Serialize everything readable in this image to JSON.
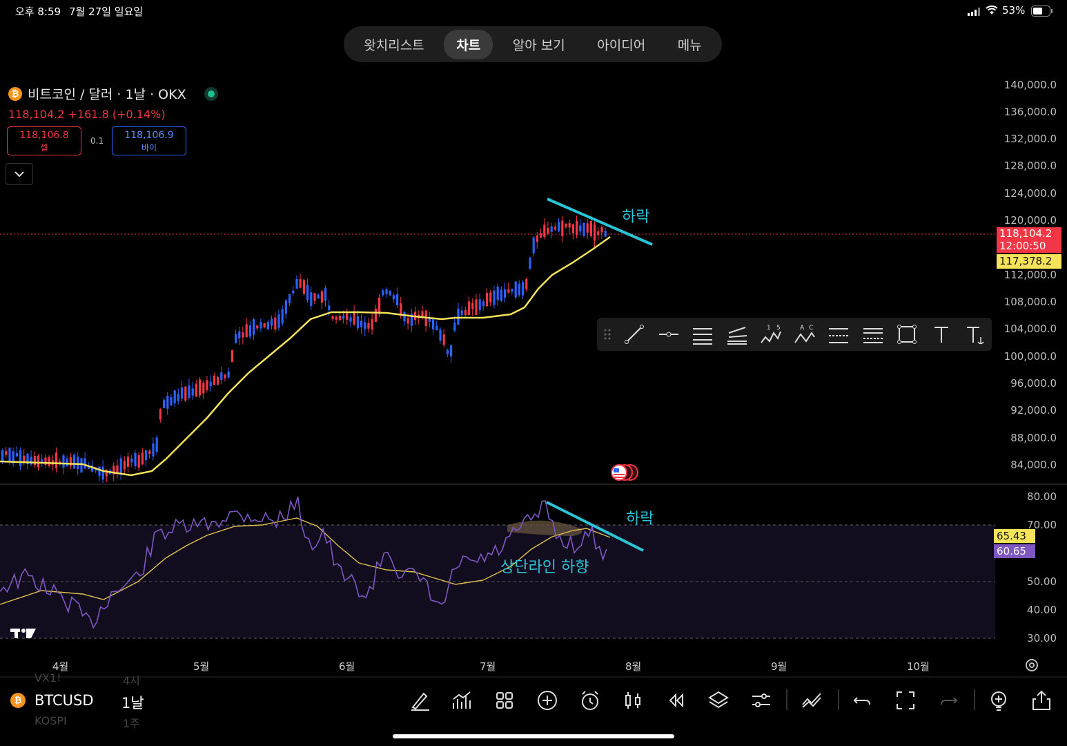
{
  "status_bar": {
    "time": "오후 8:59",
    "date": "7월 27일 일요일",
    "battery": "53%"
  },
  "tabs": [
    {
      "label": "왓치리스트",
      "active": false
    },
    {
      "label": "차트",
      "active": true
    },
    {
      "label": "알아 보기",
      "active": false
    },
    {
      "label": "아이디어",
      "active": false
    },
    {
      "label": "메뉴",
      "active": false
    }
  ],
  "symbol": {
    "logo": "₿",
    "title": "비트코인 / 달러 · 1날 · OKX",
    "last_price": "118,104.2",
    "change": "+161.8",
    "change_pct": "(+0.14%)",
    "sell_price": "118,106.8",
    "sell_label": "셀",
    "spread": "0.1",
    "buy_price": "118,106.9",
    "buy_label": "바이"
  },
  "price_axis": [
    "140,000.0",
    "136,000.0",
    "132,000.0",
    "128,000.0",
    "124,000.0",
    "120,000.0",
    "112,000.0",
    "108,000.0",
    "104,000.0",
    "100,000.0",
    "96,000.0",
    "92,000.0",
    "88,000.0",
    "84,000.0"
  ],
  "price_tags": {
    "current": "118,104.2",
    "countdown": "12:00:50",
    "ma_value": "117,378.2"
  },
  "rsi_axis": [
    "80.00",
    "70.00",
    "50.00",
    "40.00",
    "30.00"
  ],
  "rsi_tags": {
    "ma": "65.43",
    "rsi": "60.65"
  },
  "annotations": {
    "price_down": "하락",
    "rsi_down": "하락",
    "rsi_note": "상단라인 하향"
  },
  "time_axis": [
    "4월",
    "5월",
    "6월",
    "7월",
    "8월",
    "9월",
    "10월"
  ],
  "bottom": {
    "symbol": "BTCUSD",
    "interval": "1날",
    "ghost_row1": "VX1!",
    "ghost_row1b": "4시",
    "ghost_row2": "KOSPI",
    "ghost_row2b": "1주"
  },
  "colors": {
    "up": "#f23645",
    "down": "#2962ff",
    "ma": "#f5e35a",
    "trend": "#29c5d6",
    "rsi": "#7e57c2"
  }
}
